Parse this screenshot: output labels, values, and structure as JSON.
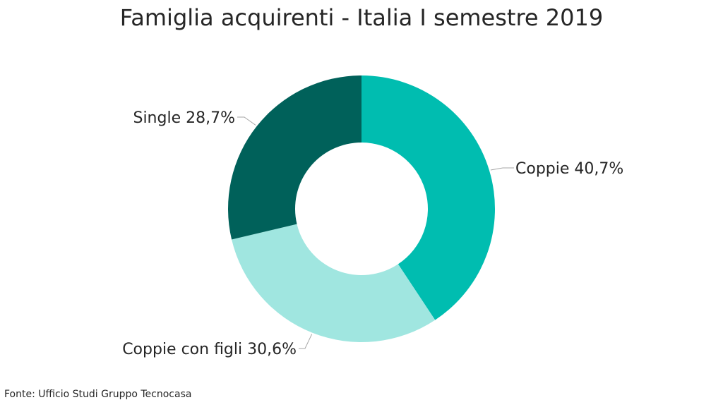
{
  "chart_data": {
    "type": "pie",
    "title": "Famiglia acquirenti - Italia I semestre 2019",
    "categories": [
      "Coppie",
      "Coppie con figli",
      "Single"
    ],
    "values": [
      40.7,
      30.6,
      28.7
    ],
    "labels": [
      "Coppie 40,7%",
      "Coppie con figli 30,6%",
      "Single 28,7%"
    ],
    "colors": [
      "#00bdb0",
      "#a0e6e0",
      "#00615a"
    ],
    "donut": true,
    "legend": "none"
  },
  "source": "Fonte: Ufficio Studi Gruppo Tecnocasa"
}
